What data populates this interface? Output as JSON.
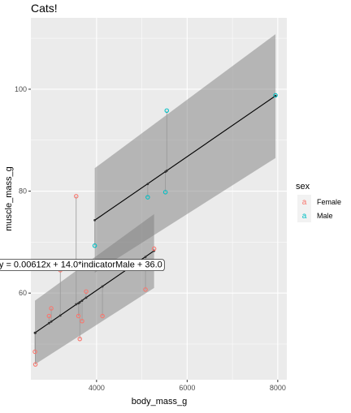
{
  "chart_data": {
    "type": "scatter",
    "title": "Cats!",
    "xlabel": "body_mass_g",
    "ylabel": "muscle_mass_g",
    "xlim": [
      2550,
      8200
    ],
    "ylim": [
      43,
      114
    ],
    "x_ticks": [
      4000,
      6000,
      8000
    ],
    "y_ticks": [
      60,
      80,
      100
    ],
    "grid": true,
    "legend": {
      "title": "sex",
      "position": "right",
      "key_glyph": "a"
    },
    "series": [
      {
        "name": "Female",
        "color": "#F8766D",
        "points": [
          {
            "x": 2640,
            "y": 48.5,
            "fit": 52.2
          },
          {
            "x": 2650,
            "y": 46.0,
            "fit": 52.2
          },
          {
            "x": 2950,
            "y": 55.5,
            "fit": 54.1
          },
          {
            "x": 3000,
            "y": 57.0,
            "fit": 54.4
          },
          {
            "x": 3200,
            "y": 64.5,
            "fit": 55.6
          },
          {
            "x": 3550,
            "y": 79.0,
            "fit": 57.8
          },
          {
            "x": 3600,
            "y": 55.5,
            "fit": 58.0
          },
          {
            "x": 3630,
            "y": 51.0,
            "fit": 58.2
          },
          {
            "x": 3680,
            "y": 54.5,
            "fit": 58.5
          },
          {
            "x": 3770,
            "y": 60.3,
            "fit": 59.1
          },
          {
            "x": 4130,
            "y": 55.5,
            "fit": 61.3
          },
          {
            "x": 5080,
            "y": 60.7,
            "fit": 67.1
          },
          {
            "x": 5270,
            "y": 68.7,
            "fit": 68.3
          }
        ]
      },
      {
        "name": "Male",
        "color": "#00BFC4",
        "points": [
          {
            "x": 3960,
            "y": 69.3,
            "fit": 74.3
          },
          {
            "x": 5130,
            "y": 78.8,
            "fit": 81.4
          },
          {
            "x": 5520,
            "y": 79.8,
            "fit": 83.8
          },
          {
            "x": 5550,
            "y": 95.8,
            "fit": 84.0
          },
          {
            "x": 7950,
            "y": 98.8,
            "fit": 98.7
          }
        ]
      }
    ],
    "fits": [
      {
        "group": "Female",
        "x": [
          2640,
          5270
        ],
        "y": [
          52.2,
          68.3
        ],
        "band_lo": [
          46.0,
          61.0
        ],
        "band_hi": [
          58.5,
          75.5
        ]
      },
      {
        "group": "Male",
        "x": [
          3960,
          7950
        ],
        "y": [
          74.3,
          98.7
        ],
        "band_lo": [
          64.0,
          86.5
        ],
        "band_hi": [
          84.5,
          110.8
        ]
      }
    ],
    "annotation": {
      "text": "y = 0.00612x + 14.0*indicatorMale + 36.0",
      "x": 3650,
      "y": 65.5
    }
  }
}
